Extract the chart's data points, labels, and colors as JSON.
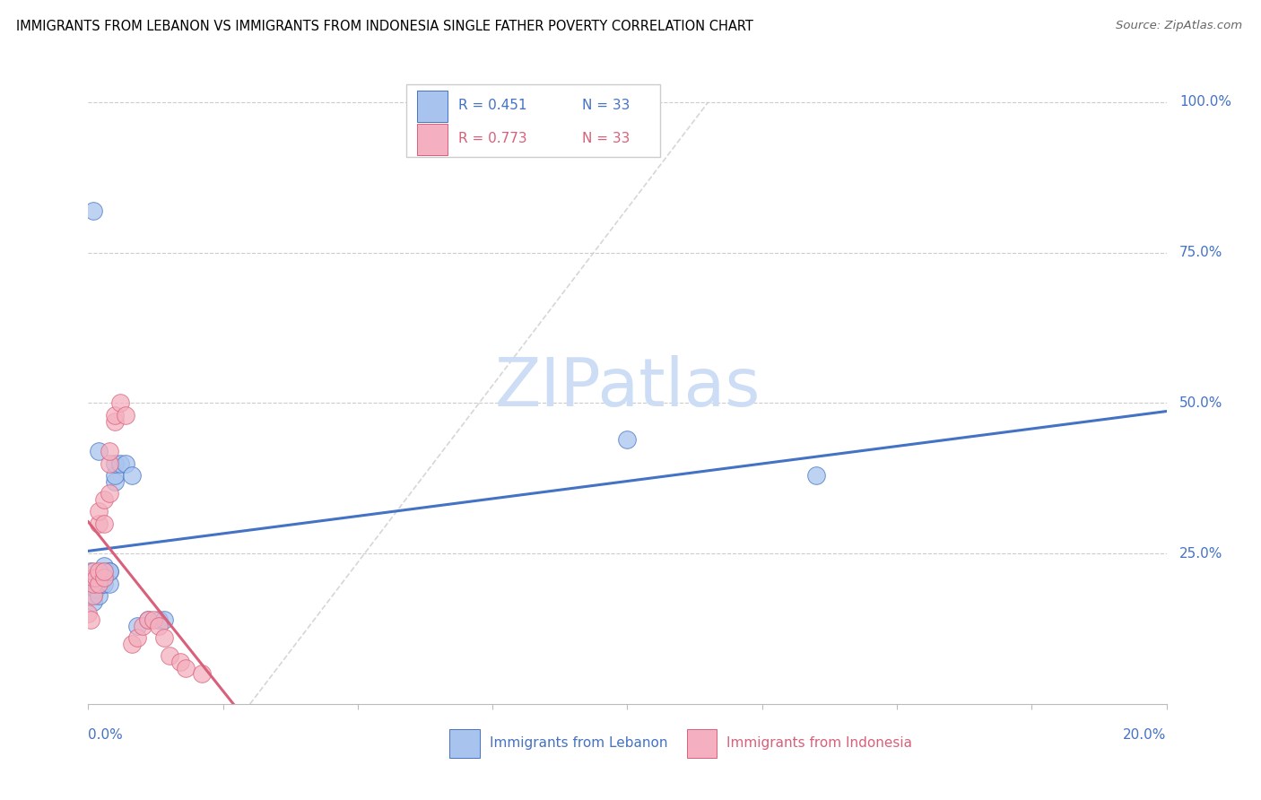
{
  "title": "IMMIGRANTS FROM LEBANON VS IMMIGRANTS FROM INDONESIA SINGLE FATHER POVERTY CORRELATION CHART",
  "source": "Source: ZipAtlas.com",
  "ylabel": "Single Father Poverty",
  "ytick_vals": [
    0.25,
    0.5,
    0.75,
    1.0
  ],
  "ytick_labels": [
    "25.0%",
    "50.0%",
    "75.0%",
    "100.0%"
  ],
  "legend_r1": "R = 0.451",
  "legend_n1": "N = 33",
  "legend_r2": "R = 0.773",
  "legend_n2": "N = 33",
  "color_lebanon_fill": "#a8c4ee",
  "color_lebanon_edge": "#4472c4",
  "color_indonesia_fill": "#f4b0c0",
  "color_indonesia_edge": "#d9607a",
  "color_line_lebanon": "#4472c4",
  "color_line_indonesia": "#d9607a",
  "color_watermark": "#ccddf5",
  "color_grid": "#cccccc",
  "color_diag": "#cccccc",
  "xlim": [
    0.0,
    0.2
  ],
  "ylim": [
    0.0,
    1.05
  ],
  "lebanon_x": [
    0.0005,
    0.001,
    0.001,
    0.001,
    0.001,
    0.0015,
    0.0015,
    0.002,
    0.002,
    0.002,
    0.0025,
    0.003,
    0.003,
    0.003,
    0.003,
    0.003,
    0.004,
    0.004,
    0.004,
    0.005,
    0.005,
    0.005,
    0.006,
    0.007,
    0.008,
    0.009,
    0.011,
    0.013,
    0.014,
    0.001,
    0.002,
    0.1,
    0.135
  ],
  "lebanon_y": [
    0.22,
    0.18,
    0.2,
    0.21,
    0.17,
    0.19,
    0.2,
    0.2,
    0.21,
    0.18,
    0.2,
    0.21,
    0.21,
    0.22,
    0.23,
    0.2,
    0.22,
    0.2,
    0.22,
    0.37,
    0.38,
    0.4,
    0.4,
    0.4,
    0.38,
    0.13,
    0.14,
    0.14,
    0.14,
    0.82,
    0.42,
    0.44,
    0.38
  ],
  "indonesia_x": [
    0.0,
    0.0005,
    0.001,
    0.001,
    0.001,
    0.001,
    0.0015,
    0.002,
    0.002,
    0.002,
    0.002,
    0.003,
    0.003,
    0.003,
    0.003,
    0.004,
    0.004,
    0.004,
    0.005,
    0.005,
    0.006,
    0.007,
    0.008,
    0.009,
    0.01,
    0.011,
    0.012,
    0.013,
    0.014,
    0.015,
    0.017,
    0.018,
    0.021
  ],
  "indonesia_y": [
    0.15,
    0.14,
    0.18,
    0.2,
    0.21,
    0.22,
    0.21,
    0.2,
    0.22,
    0.3,
    0.32,
    0.21,
    0.22,
    0.3,
    0.34,
    0.35,
    0.4,
    0.42,
    0.47,
    0.48,
    0.5,
    0.48,
    0.1,
    0.11,
    0.13,
    0.14,
    0.14,
    0.13,
    0.11,
    0.08,
    0.07,
    0.06,
    0.05
  ]
}
